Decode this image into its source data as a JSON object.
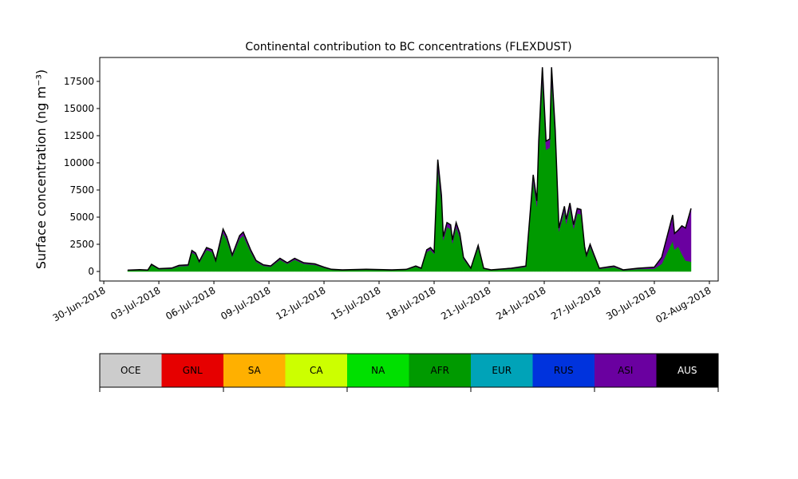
{
  "chart_data": {
    "type": "stacked_area",
    "title": "Continental contribution to BC concentrations (FLEXDUST)",
    "ylabel": "Surface concentration (ng m⁻³)",
    "x": [
      1.3,
      1.96,
      2.4,
      2.6,
      3.0,
      3.7,
      4.1,
      4.6,
      4.8,
      5.0,
      5.2,
      5.6,
      5.9,
      6.1,
      6.5,
      6.7,
      7.0,
      7.4,
      7.6,
      8.0,
      8.3,
      8.7,
      9.1,
      9.6,
      10.0,
      10.4,
      10.9,
      11.5,
      12.0,
      12.4,
      13.0,
      14.3,
      15.7,
      16.5,
      17.0,
      17.3,
      17.6,
      17.8,
      18.0,
      18.2,
      18.4,
      18.5,
      18.7,
      18.9,
      19.0,
      19.2,
      19.4,
      19.6,
      20.0,
      20.4,
      20.7,
      21.1,
      22.2,
      23.0,
      23.4,
      23.6,
      23.7,
      23.9,
      24.1,
      24.3,
      24.4,
      24.6,
      24.8,
      25.1,
      25.2,
      25.4,
      25.6,
      25.8,
      26.0,
      26.2,
      26.3,
      26.5,
      26.7,
      27.0,
      27.8,
      28.3,
      29.1,
      30.0,
      30.4,
      31.0,
      31.1,
      31.3,
      31.5,
      31.7,
      32.0
    ],
    "series": [
      {
        "name": "AFR",
        "color": "#009a00",
        "values": [
          90,
          130,
          100,
          580,
          210,
          250,
          480,
          520,
          1750,
          1550,
          800,
          1980,
          1800,
          880,
          3550,
          2900,
          1350,
          3000,
          3300,
          1800,
          880,
          520,
          430,
          1080,
          700,
          1080,
          700,
          610,
          340,
          160,
          110,
          160,
          110,
          160,
          440,
          250,
          1800,
          2000,
          1620,
          9500,
          6400,
          2900,
          4100,
          3900,
          2600,
          4100,
          3150,
          1150,
          250,
          2200,
          250,
          110,
          240,
          420,
          8300,
          6000,
          11200,
          17700,
          11200,
          11400,
          17700,
          12200,
          3700,
          5550,
          4400,
          5850,
          3950,
          5350,
          5250,
          2100,
          1350,
          2280,
          1440,
          240,
          400,
          100,
          220,
          250,
          700,
          2800,
          2000,
          2300,
          1600,
          1000,
          900
        ]
      },
      {
        "name": "ASI",
        "color": "#6a00a0",
        "values": [
          30,
          40,
          30,
          80,
          50,
          60,
          80,
          90,
          180,
          150,
          120,
          220,
          200,
          130,
          350,
          300,
          170,
          300,
          330,
          200,
          130,
          90,
          80,
          130,
          100,
          130,
          100,
          90,
          60,
          40,
          40,
          40,
          40,
          40,
          60,
          50,
          200,
          200,
          180,
          800,
          600,
          300,
          400,
          400,
          300,
          400,
          350,
          150,
          50,
          200,
          50,
          40,
          60,
          80,
          600,
          500,
          800,
          1100,
          800,
          800,
          1100,
          800,
          300,
          450,
          400,
          450,
          350,
          450,
          450,
          200,
          150,
          220,
          160,
          60,
          100,
          50,
          80,
          150,
          600,
          2400,
          1500,
          1500,
          2600,
          3000,
          4900
        ]
      }
    ],
    "outline_color": "#000000",
    "xlim": [
      -0.22,
      33.48
    ],
    "xticks": [
      {
        "value": 0,
        "label": "30-Jun-2018"
      },
      {
        "value": 3,
        "label": "03-Jul-2018"
      },
      {
        "value": 6,
        "label": "06-Jul-2018"
      },
      {
        "value": 9,
        "label": "09-Jul-2018"
      },
      {
        "value": 12,
        "label": "12-Jul-2018"
      },
      {
        "value": 15,
        "label": "15-Jul-2018"
      },
      {
        "value": 18,
        "label": "18-Jul-2018"
      },
      {
        "value": 21,
        "label": "21-Jul-2018"
      },
      {
        "value": 24,
        "label": "24-Jul-2018"
      },
      {
        "value": 27,
        "label": "27-Jul-2018"
      },
      {
        "value": 30,
        "label": "30-Jul-2018"
      },
      {
        "value": 33,
        "label": "02-Aug-2018"
      }
    ],
    "ylim": [
      -880,
      19700
    ],
    "yticks": [
      0,
      2500,
      5000,
      7500,
      10000,
      12500,
      15000,
      17500
    ],
    "colorbar": {
      "labels": [
        "OCE",
        "GNL",
        "SA",
        "CA",
        "NA",
        "AFR",
        "EUR",
        "RUS",
        "ASI",
        "AUS"
      ],
      "colors": [
        "#cccccc",
        "#e60000",
        "#ffb000",
        "#ccff00",
        "#00e000",
        "#009a00",
        "#00a3b8",
        "#0033dd",
        "#6a00a0",
        "#000000"
      ]
    }
  }
}
